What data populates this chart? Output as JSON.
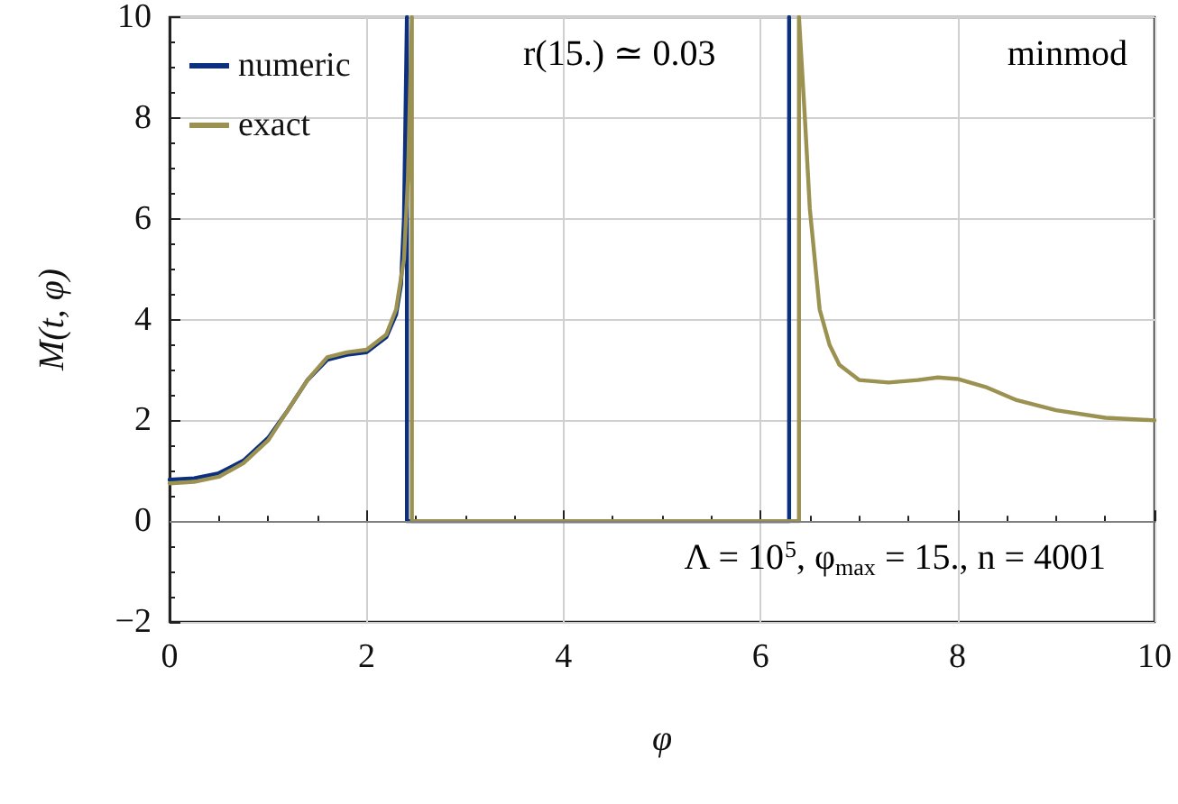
{
  "chart_data": {
    "type": "line",
    "xlabel": "φ",
    "ylabel": "M(t, φ)",
    "annotations": [
      "r(15.) ≃ 0.03",
      "minmod",
      "Λ = 10$^{5}$, φ$_{max}$ = 15., n = 4001"
    ],
    "xlim": [
      0,
      10
    ],
    "ylim": [
      -2,
      10
    ],
    "xticks": [
      0,
      2,
      4,
      6,
      8,
      10
    ],
    "yticks": [
      -2,
      0,
      2,
      4,
      6,
      8,
      10
    ],
    "grid": true,
    "legend": "top left",
    "marker": "none",
    "line_style": "solid",
    "ref_lines": [
      {
        "axis": "y",
        "value": 0,
        "color": "#808080"
      }
    ],
    "series": [
      {
        "name": "numeric",
        "color": "#0c2f7f",
        "x": [
          0,
          0.25,
          0.5,
          0.75,
          1,
          1.2,
          1.4,
          1.6,
          1.8,
          2,
          2.2,
          2.3,
          2.35,
          2.38,
          2.41,
          2.41,
          6.29,
          6.29
        ],
        "values": [
          0.82,
          0.85,
          0.95,
          1.2,
          1.65,
          2.2,
          2.8,
          3.2,
          3.3,
          3.35,
          3.65,
          4.1,
          4.7,
          6,
          10,
          0,
          0,
          10
        ]
      },
      {
        "name": "exact",
        "color": "#9b9150",
        "x": [
          0,
          0.25,
          0.5,
          0.75,
          1,
          1.2,
          1.4,
          1.6,
          1.8,
          2,
          2.2,
          2.3,
          2.38,
          2.42,
          2.46,
          2.46,
          3,
          4,
          5,
          6,
          6.39,
          6.39,
          6.42,
          6.45,
          6.5,
          6.6,
          6.7,
          6.8,
          7,
          7.3,
          7.6,
          7.8,
          8,
          8.3,
          8.6,
          9,
          9.5,
          10
        ],
        "values": [
          0.75,
          0.78,
          0.88,
          1.15,
          1.6,
          2.2,
          2.8,
          3.25,
          3.35,
          3.4,
          3.7,
          4.2,
          5.2,
          6.8,
          10,
          0,
          0,
          0,
          0,
          0,
          0,
          10,
          9,
          8,
          6.2,
          4.2,
          3.5,
          3.1,
          2.8,
          2.75,
          2.8,
          2.85,
          2.82,
          2.65,
          2.4,
          2.2,
          2.05,
          2.0
        ]
      }
    ]
  }
}
